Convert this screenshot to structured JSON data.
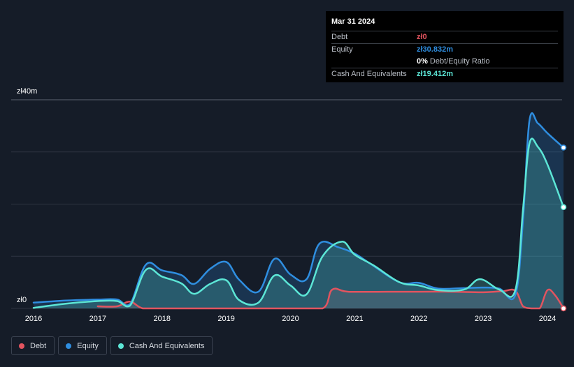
{
  "tooltip": {
    "date": "Mar 31 2024",
    "rows": [
      {
        "label": "Debt",
        "value": "zł0",
        "color": "#e2545f"
      },
      {
        "label": "Equity",
        "value": "zł30.832m",
        "color": "#2f8ee0"
      },
      {
        "label": "",
        "value": "0%",
        "extra": "Debt/Equity Ratio",
        "color": "#ffffff"
      },
      {
        "label": "Cash And Equivalents",
        "value": "zł19.412m",
        "color": "#5ce6d6"
      }
    ]
  },
  "legend": [
    {
      "label": "Debt",
      "color": "#e2545f"
    },
    {
      "label": "Equity",
      "color": "#2f8ee0"
    },
    {
      "label": "Cash And Equivalents",
      "color": "#5ce6d6"
    }
  ],
  "chart_data": {
    "type": "area",
    "title": "",
    "xlabel": "",
    "ylabel": "",
    "ylim": [
      0,
      40
    ],
    "xlim": [
      2015.9,
      2024.25
    ],
    "y_tick_labels": [
      {
        "value": 40,
        "label": "zł40m"
      },
      {
        "value": 0,
        "label": "zł0"
      }
    ],
    "x_ticks": [
      2016,
      2017,
      2018,
      2019,
      2020,
      2021,
      2022,
      2023,
      2024
    ],
    "grid": true,
    "legend_position": "bottom-left",
    "series": [
      {
        "name": "Debt",
        "color": "#e2545f",
        "points": [
          [
            2017.0,
            0.4
          ],
          [
            2017.3,
            0.4
          ],
          [
            2017.5,
            1.3
          ],
          [
            2017.7,
            0
          ],
          [
            2018.0,
            0
          ],
          [
            2019.0,
            0
          ],
          [
            2020.0,
            0
          ],
          [
            2020.5,
            0
          ],
          [
            2020.65,
            3.6
          ],
          [
            2020.9,
            3.2
          ],
          [
            2021.5,
            3.2
          ],
          [
            2022.0,
            3.2
          ],
          [
            2022.5,
            3.2
          ],
          [
            2023.0,
            3.1
          ],
          [
            2023.3,
            3.3
          ],
          [
            2023.5,
            3.4
          ],
          [
            2023.62,
            0.4
          ],
          [
            2023.75,
            0
          ],
          [
            2023.88,
            0
          ],
          [
            2024.0,
            3.5
          ],
          [
            2024.12,
            2.5
          ],
          [
            2024.25,
            0
          ]
        ]
      },
      {
        "name": "Equity",
        "color": "#2f8ee0",
        "points": [
          [
            2016.0,
            1.1
          ],
          [
            2016.5,
            1.5
          ],
          [
            2017.0,
            1.7
          ],
          [
            2017.3,
            1.7
          ],
          [
            2017.5,
            0.8
          ],
          [
            2017.75,
            8.4
          ],
          [
            2018.0,
            7.3
          ],
          [
            2018.3,
            6.4
          ],
          [
            2018.5,
            4.7
          ],
          [
            2018.75,
            7.6
          ],
          [
            2019.0,
            8.9
          ],
          [
            2019.2,
            5.5
          ],
          [
            2019.5,
            3.2
          ],
          [
            2019.75,
            9.5
          ],
          [
            2020.0,
            6.5
          ],
          [
            2020.25,
            5.6
          ],
          [
            2020.45,
            12.4
          ],
          [
            2020.75,
            11.7
          ],
          [
            2021.0,
            10.5
          ],
          [
            2021.25,
            8.5
          ],
          [
            2021.7,
            5.0
          ],
          [
            2022.0,
            4.9
          ],
          [
            2022.3,
            3.8
          ],
          [
            2022.7,
            3.9
          ],
          [
            2023.0,
            4.0
          ],
          [
            2023.25,
            3.8
          ],
          [
            2023.5,
            2.6
          ],
          [
            2023.62,
            17.0
          ],
          [
            2023.72,
            36.0
          ],
          [
            2023.85,
            35.5
          ],
          [
            2024.0,
            33.6
          ],
          [
            2024.25,
            30.832
          ]
        ]
      },
      {
        "name": "Cash And Equivalents",
        "color": "#5ce6d6",
        "points": [
          [
            2016.0,
            0.1
          ],
          [
            2016.5,
            0.9
          ],
          [
            2017.0,
            1.4
          ],
          [
            2017.3,
            1.4
          ],
          [
            2017.5,
            0.5
          ],
          [
            2017.75,
            7.4
          ],
          [
            2018.0,
            6.1
          ],
          [
            2018.3,
            4.8
          ],
          [
            2018.5,
            2.8
          ],
          [
            2018.75,
            4.7
          ],
          [
            2019.0,
            5.4
          ],
          [
            2019.2,
            1.6
          ],
          [
            2019.5,
            1.1
          ],
          [
            2019.75,
            6.3
          ],
          [
            2020.0,
            4.4
          ],
          [
            2020.25,
            2.7
          ],
          [
            2020.5,
            10.0
          ],
          [
            2020.8,
            12.8
          ],
          [
            2021.0,
            10.3
          ],
          [
            2021.3,
            8.2
          ],
          [
            2021.7,
            5.0
          ],
          [
            2022.0,
            4.4
          ],
          [
            2022.3,
            3.5
          ],
          [
            2022.7,
            3.6
          ],
          [
            2022.95,
            5.6
          ],
          [
            2023.25,
            3.6
          ],
          [
            2023.5,
            3.5
          ],
          [
            2023.62,
            19.0
          ],
          [
            2023.72,
            31.6
          ],
          [
            2023.85,
            31.0
          ],
          [
            2024.0,
            27.6
          ],
          [
            2024.25,
            19.412
          ]
        ]
      }
    ]
  }
}
